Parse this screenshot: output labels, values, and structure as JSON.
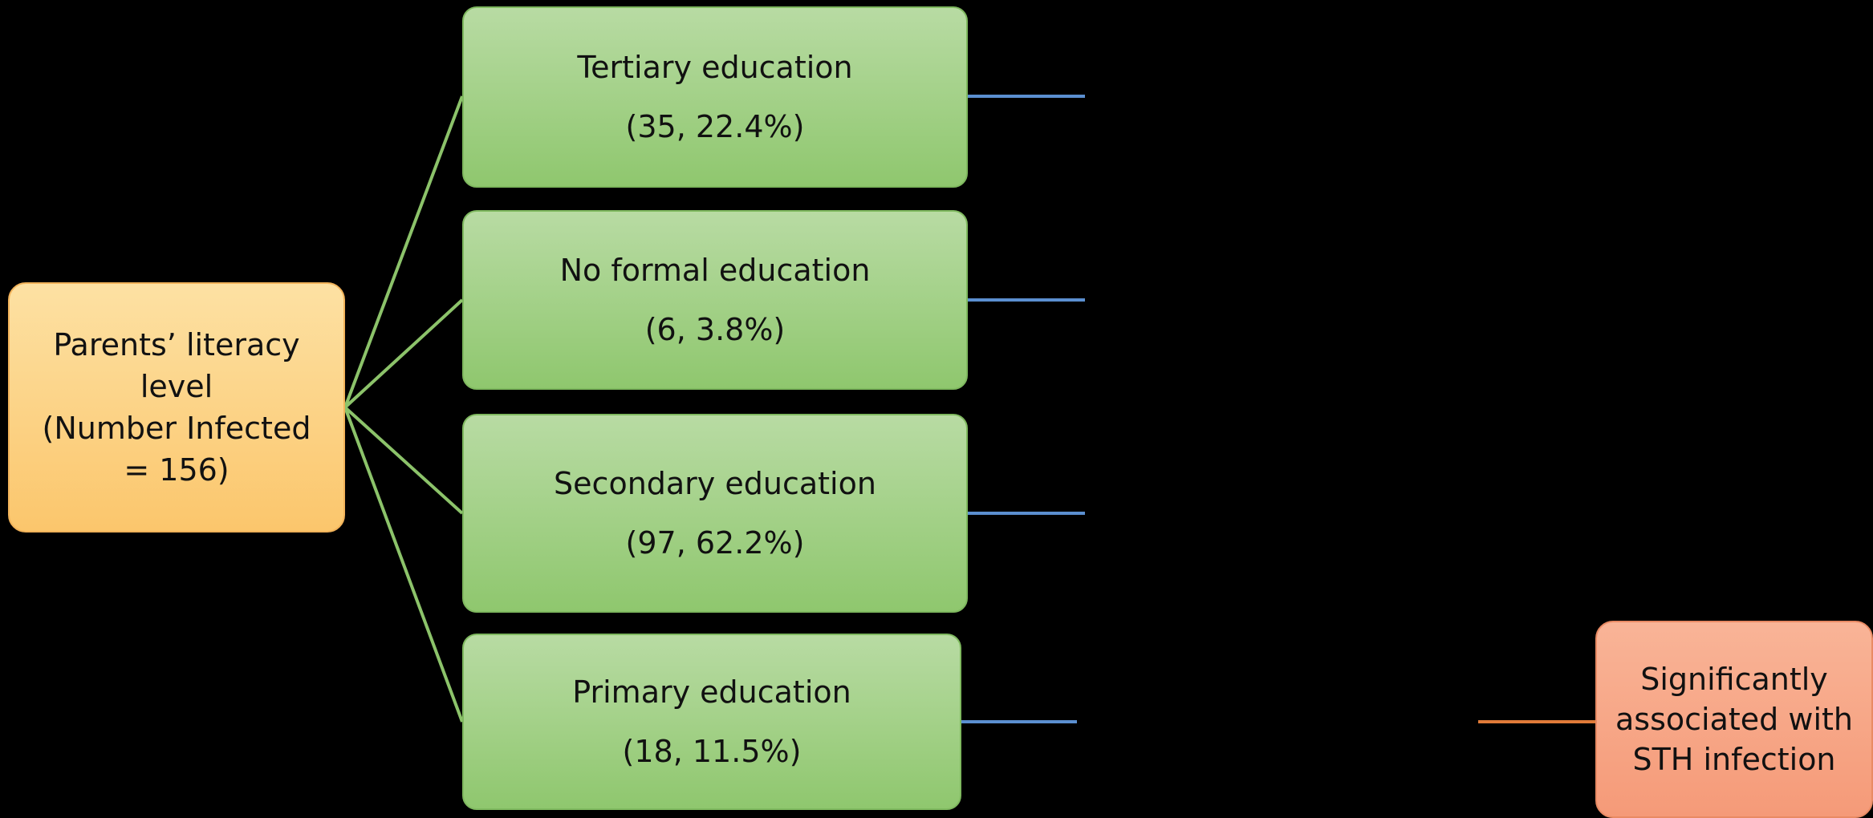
{
  "colors": {
    "background": "#000000",
    "root_fill": "#fbc66c",
    "category_fill": "#9fcf85",
    "result_fill": "#f59a78",
    "root_connector": "#8cc36a",
    "category_connector": "#5b8fd0",
    "result_connector": "#e07b39"
  },
  "root": {
    "line1": "Parents’ literacy",
    "line2": "level",
    "line3": "(Number Infected",
    "line4": "= 156)",
    "total_infected": 156
  },
  "categories": [
    {
      "label": "Tertiary education",
      "stats": "(35, 22.4%)",
      "count": 35,
      "percent": 22.4
    },
    {
      "label": "No formal education",
      "stats": "(6, 3.8%)",
      "count": 6,
      "percent": 3.8
    },
    {
      "label": "Secondary education",
      "stats": "(97, 62.2%)",
      "count": 97,
      "percent": 62.2
    },
    {
      "label": "Primary education",
      "stats": "(18, 11.5%)",
      "count": 18,
      "percent": 11.5
    }
  ],
  "result": {
    "line1": "Significantly",
    "line2": "associated with",
    "line3": "STH infection"
  }
}
